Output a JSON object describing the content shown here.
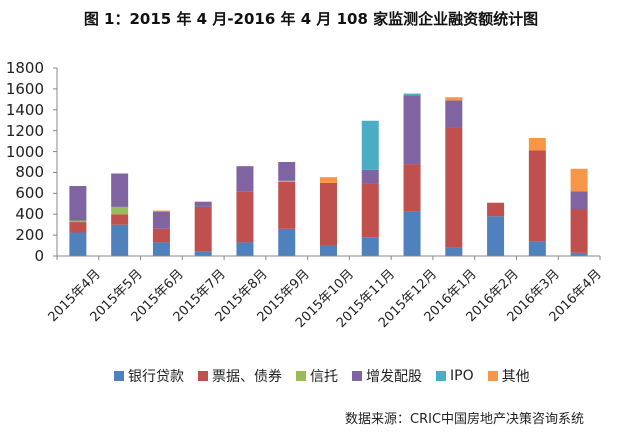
{
  "title": "图 1：2015 年 4 月-2016 年 4 月 108 家监测企业融资额统计图",
  "source": "数据来源：CRIC中国房地产决策咨询系统",
  "colors": {
    "银行贷款": "#4F81BD",
    "票据、债券": "#C0504D",
    "信托": "#9BBB59",
    "增发配股": "#8064A2",
    "IPO": "#4BACC6",
    "其他": "#F79646"
  },
  "chart_data": {
    "type": "bar",
    "stacked": true,
    "title": "图 1：2015 年 4 月-2016 年 4 月 108 家监测企业融资额统计图",
    "xlabel": "",
    "ylabel": "",
    "ylim": [
      0,
      1800
    ],
    "yticks": [
      0,
      200,
      400,
      600,
      800,
      1000,
      1200,
      1400,
      1600,
      1800
    ],
    "grid": false,
    "legend_position": "bottom",
    "categories": [
      "2015年4月",
      "2015年5月",
      "2015年6月",
      "2015年7月",
      "2015年8月",
      "2015年9月",
      "2015年10月",
      "2015年11月",
      "2015年12月",
      "2016年1月",
      "2016年2月",
      "2016年3月",
      "2016年4月"
    ],
    "series": [
      {
        "name": "银行贷款",
        "color": "#4F81BD",
        "values": [
          225,
          300,
          130,
          45,
          130,
          260,
          100,
          180,
          430,
          80,
          380,
          140,
          30
        ]
      },
      {
        "name": "票据、债券",
        "color": "#C0504D",
        "values": [
          100,
          100,
          130,
          425,
          490,
          450,
          600,
          510,
          450,
          1150,
          130,
          870,
          420
        ]
      },
      {
        "name": "信托",
        "color": "#9BBB59",
        "values": [
          15,
          70,
          0,
          0,
          0,
          10,
          0,
          0,
          0,
          0,
          0,
          0,
          0
        ]
      },
      {
        "name": "增发配股",
        "color": "#8064A2",
        "values": [
          330,
          320,
          165,
          50,
          240,
          180,
          0,
          135,
          660,
          260,
          0,
          0,
          170
        ]
      },
      {
        "name": "IPO",
        "color": "#4BACC6",
        "values": [
          0,
          0,
          0,
          0,
          0,
          0,
          0,
          470,
          15,
          0,
          0,
          0,
          0
        ]
      },
      {
        "name": "其他",
        "color": "#F79646",
        "values": [
          0,
          0,
          10,
          0,
          0,
          0,
          55,
          0,
          0,
          30,
          0,
          120,
          215
        ]
      }
    ]
  }
}
